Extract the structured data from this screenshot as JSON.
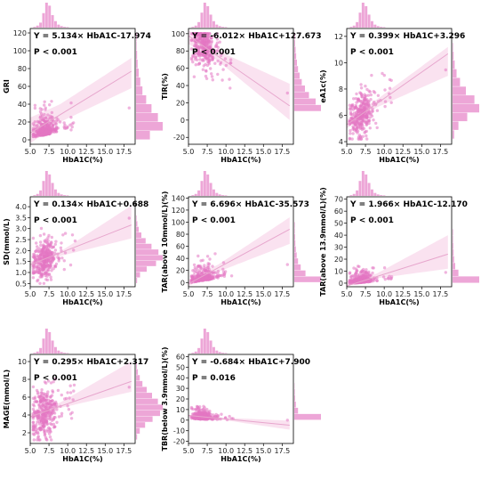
{
  "style": {
    "point_color": "#e377c2",
    "bar_color": "#e377c2",
    "band_color": "#f6cfe6",
    "fit_color": "#e7a6cd"
  },
  "chart_data": [
    {
      "type": "scatter",
      "id": "gri",
      "xlabel": "HbA1C(%)",
      "ylabel": "GRI",
      "xlim": [
        5,
        19
      ],
      "ylim": [
        -5,
        125
      ],
      "xticks": [
        5.0,
        7.5,
        10.0,
        12.5,
        15.0,
        17.5
      ],
      "yticks": [
        0,
        20,
        40,
        60,
        80,
        100,
        120
      ],
      "equation": "Y = 5.134× HbA1C-17.974",
      "p_value": "P < 0.001",
      "fit": {
        "slope": 5.134,
        "intercept": -17.974
      },
      "band_hi": [
        [
          5,
          25
        ],
        [
          9,
          40
        ],
        [
          18.5,
          92
        ]
      ],
      "band_lo": [
        [
          5,
          -4
        ],
        [
          9,
          20
        ],
        [
          18.5,
          58
        ]
      ],
      "points": {
        "n": 320,
        "x_mean": 6.9,
        "x_sd": 0.8,
        "x_max": 18.2,
        "resid_sd": 14,
        "clip": [
          0,
          120
        ],
        "skew": true
      },
      "top_hist": [
        3,
        8,
        20,
        58,
        100,
        88,
        50,
        26,
        12,
        6,
        3,
        2
      ],
      "right_hist": [
        52,
        100,
        82,
        58,
        38,
        24,
        16,
        10,
        6,
        4,
        2,
        2
      ]
    },
    {
      "type": "scatter",
      "id": "tir",
      "xlabel": "HbA1C(%)",
      "ylabel": "TIR(%)",
      "xlim": [
        5,
        19
      ],
      "ylim": [
        -28,
        106
      ],
      "xticks": [
        5.0,
        7.5,
        10.0,
        12.5,
        15.0,
        17.5
      ],
      "yticks": [
        -20,
        0,
        20,
        40,
        60,
        80,
        100
      ],
      "equation": "Y = -6.012× HbA1C+127.673",
      "p_value": "P < 0.001",
      "fit": {
        "slope": -6.012,
        "intercept": 127.673
      },
      "band_hi": [
        [
          5,
          104
        ],
        [
          9,
          80
        ],
        [
          18.5,
          42
        ]
      ],
      "band_lo": [
        [
          5,
          88
        ],
        [
          9,
          68
        ],
        [
          18.5,
          0
        ]
      ],
      "points": {
        "n": 320,
        "x_mean": 6.9,
        "x_sd": 0.8,
        "x_max": 18.2,
        "resid_sd": 13,
        "clip": [
          10,
          100
        ],
        "skew": false
      },
      "top_hist": [
        3,
        8,
        22,
        60,
        100,
        86,
        52,
        26,
        12,
        6,
        3,
        2
      ],
      "right_hist": [
        100,
        80,
        55,
        40,
        28,
        20,
        14,
        10,
        7,
        5,
        3,
        2
      ]
    },
    {
      "type": "scatter",
      "id": "ea1c",
      "xlabel": "HbA1C(%)",
      "ylabel": "eA1c(%)",
      "xlim": [
        5,
        19
      ],
      "ylim": [
        3.8,
        12.6
      ],
      "xticks": [
        5.0,
        7.5,
        10.0,
        12.5,
        15.0,
        17.5
      ],
      "yticks": [
        4,
        6,
        8,
        10,
        12
      ],
      "equation": "Y = 0.399× HbA1C+3.296",
      "p_value": "P < 0.001",
      "fit": {
        "slope": 0.399,
        "intercept": 3.296
      },
      "band_hi": [
        [
          5,
          5.7
        ],
        [
          9,
          7.2
        ],
        [
          18.5,
          11.2
        ]
      ],
      "band_lo": [
        [
          5,
          5.0
        ],
        [
          9,
          6.6
        ],
        [
          18.5,
          9.0
        ]
      ],
      "points": {
        "n": 320,
        "x_mean": 6.9,
        "x_sd": 0.8,
        "x_max": 18.2,
        "resid_sd": 0.8,
        "clip": [
          4.2,
          11.5
        ],
        "skew": false
      },
      "top_hist": [
        3,
        8,
        22,
        60,
        100,
        86,
        52,
        26,
        12,
        6,
        3,
        2
      ],
      "right_hist": [
        6,
        22,
        55,
        100,
        82,
        50,
        28,
        15,
        8,
        4,
        2
      ]
    },
    {
      "type": "scatter",
      "id": "sd",
      "xlabel": "HbA1C(%)",
      "ylabel": "SD(mmol/L)",
      "xlim": [
        5,
        19
      ],
      "ylim": [
        0.35,
        4.45
      ],
      "xticks": [
        5.0,
        7.5,
        10.0,
        12.5,
        15.0,
        17.5
      ],
      "yticks": [
        0.5,
        1.0,
        1.5,
        2.0,
        2.5,
        3.0,
        3.5,
        4.0
      ],
      "equation": "Y = 0.134× HbA1C+0.688",
      "p_value": "P < 0.001",
      "fit": {
        "slope": 0.134,
        "intercept": 0.688
      },
      "band_hi": [
        [
          5,
          1.5
        ],
        [
          9,
          1.95
        ],
        [
          18.5,
          4.05
        ]
      ],
      "band_lo": [
        [
          5,
          1.2
        ],
        [
          9,
          1.75
        ],
        [
          18.5,
          2.55
        ]
      ],
      "points": {
        "n": 320,
        "x_mean": 6.9,
        "x_sd": 0.8,
        "x_max": 18.2,
        "resid_sd": 0.45,
        "clip": [
          0.5,
          3.6
        ],
        "skew": false
      },
      "top_hist": [
        3,
        8,
        22,
        60,
        100,
        86,
        52,
        26,
        12,
        6,
        3,
        2
      ],
      "right_hist": [
        4,
        15,
        40,
        75,
        100,
        84,
        58,
        36,
        20,
        10,
        5,
        2
      ]
    },
    {
      "type": "scatter",
      "id": "tar10",
      "xlabel": "HbA1C(%)",
      "ylabel": "TAR(above 10mmol/L)(%)",
      "xlim": [
        5,
        19
      ],
      "ylim": [
        -7,
        142
      ],
      "xticks": [
        5.0,
        7.5,
        10.0,
        12.5,
        15.0,
        17.5
      ],
      "yticks": [
        0,
        20,
        40,
        60,
        80,
        100,
        120,
        140
      ],
      "equation": "Y = 6.696× HbA1C-35.573",
      "p_value": "P < 0.001",
      "fit": {
        "slope": 6.696,
        "intercept": -35.573
      },
      "band_hi": [
        [
          5,
          5
        ],
        [
          9,
          30
        ],
        [
          18.5,
          108
        ]
      ],
      "band_lo": [
        [
          5,
          -6
        ],
        [
          9,
          18
        ],
        [
          18.5,
          64
        ]
      ],
      "points": {
        "n": 320,
        "x_mean": 6.9,
        "x_sd": 0.8,
        "x_max": 18.2,
        "resid_sd": 14,
        "clip": [
          0,
          100
        ],
        "skew": true
      },
      "top_hist": [
        3,
        8,
        22,
        60,
        100,
        86,
        52,
        26,
        12,
        6,
        3,
        2
      ],
      "right_hist": [
        100,
        42,
        24,
        14,
        9,
        6,
        4,
        3,
        2,
        2
      ]
    },
    {
      "type": "scatter",
      "id": "tar139",
      "xlabel": "HbA1C(%)",
      "ylabel": "TAR(above 13.9mmol/L)(%)",
      "xlim": [
        5,
        19
      ],
      "ylim": [
        -3,
        72
      ],
      "xticks": [
        5.0,
        7.5,
        10.0,
        12.5,
        15.0,
        17.5
      ],
      "yticks": [
        0,
        10,
        20,
        30,
        40,
        50,
        60,
        70
      ],
      "equation": "Y = 1.966× HbA1C-12.170",
      "p_value": "P < 0.001",
      "fit": {
        "slope": 1.966,
        "intercept": -12.17
      },
      "band_hi": [
        [
          5,
          1.5
        ],
        [
          9,
          8
        ],
        [
          18.5,
          40
        ]
      ],
      "band_lo": [
        [
          5,
          -2
        ],
        [
          9,
          4
        ],
        [
          18.5,
          12
        ]
      ],
      "points": {
        "n": 320,
        "x_mean": 6.9,
        "x_sd": 0.8,
        "x_max": 18.2,
        "resid_sd": 5,
        "clip": [
          0,
          45
        ],
        "skew": true
      },
      "top_hist": [
        3,
        8,
        22,
        60,
        100,
        86,
        52,
        26,
        12,
        6,
        3,
        2
      ],
      "right_hist": [
        100,
        22,
        10,
        6,
        4,
        3,
        2,
        2
      ]
    },
    {
      "type": "scatter",
      "id": "mage",
      "xlabel": "HbA1C(%)",
      "ylabel": "MAGE(mmol/L)",
      "xlim": [
        5,
        19
      ],
      "ylim": [
        0.8,
        10.8
      ],
      "xticks": [
        5.0,
        7.5,
        10.0,
        12.5,
        15.0,
        17.5
      ],
      "yticks": [
        2,
        4,
        6,
        8,
        10
      ],
      "equation": "Y = 0.295× HbA1C+2.317",
      "p_value": "P < 0.001",
      "fit": {
        "slope": 0.295,
        "intercept": 2.317
      },
      "band_hi": [
        [
          5,
          4.2
        ],
        [
          9,
          5.4
        ],
        [
          18.5,
          10
        ]
      ],
      "band_lo": [
        [
          5,
          3.6
        ],
        [
          9,
          4.8
        ],
        [
          18.5,
          6.6
        ]
      ],
      "points": {
        "n": 320,
        "x_mean": 6.9,
        "x_sd": 0.8,
        "x_max": 18.2,
        "resid_sd": 1.4,
        "clip": [
          1.2,
          9.8
        ],
        "skew": false
      },
      "top_hist": [
        3,
        8,
        22,
        60,
        100,
        86,
        52,
        26,
        12,
        6,
        3,
        2
      ],
      "right_hist": [
        4,
        14,
        34,
        62,
        90,
        100,
        82,
        60,
        40,
        24,
        14,
        7,
        3
      ]
    },
    {
      "type": "scatter",
      "id": "tbr",
      "xlabel": "HbA1C(%)",
      "ylabel": "TBR(below 3.9mmol/L)(%)",
      "xlim": [
        5,
        19
      ],
      "ylim": [
        -22,
        62
      ],
      "xticks": [
        5.0,
        7.5,
        10.0,
        12.5,
        15.0,
        17.5
      ],
      "yticks": [
        -20,
        -10,
        0,
        10,
        20,
        30,
        40,
        50,
        60
      ],
      "equation": "Y = -0.684× HbA1C+7.900",
      "p_value": "P = 0.016",
      "fit": {
        "slope": -0.684,
        "intercept": 7.9
      },
      "band_hi": [
        [
          5,
          5
        ],
        [
          9,
          2.5
        ],
        [
          18.5,
          -0.5
        ]
      ],
      "band_lo": [
        [
          5,
          2.5
        ],
        [
          9,
          0.8
        ],
        [
          18.5,
          -9
        ]
      ],
      "points": {
        "n": 320,
        "x_mean": 6.9,
        "x_sd": 0.8,
        "x_max": 18.2,
        "resid_sd": 5,
        "clip": [
          0,
          35
        ],
        "skew": true
      },
      "top_hist": [
        3,
        8,
        22,
        60,
        100,
        86,
        52,
        26,
        12,
        6,
        3,
        2
      ],
      "right_hist": [
        100,
        14,
        6,
        3,
        2,
        1
      ]
    }
  ]
}
